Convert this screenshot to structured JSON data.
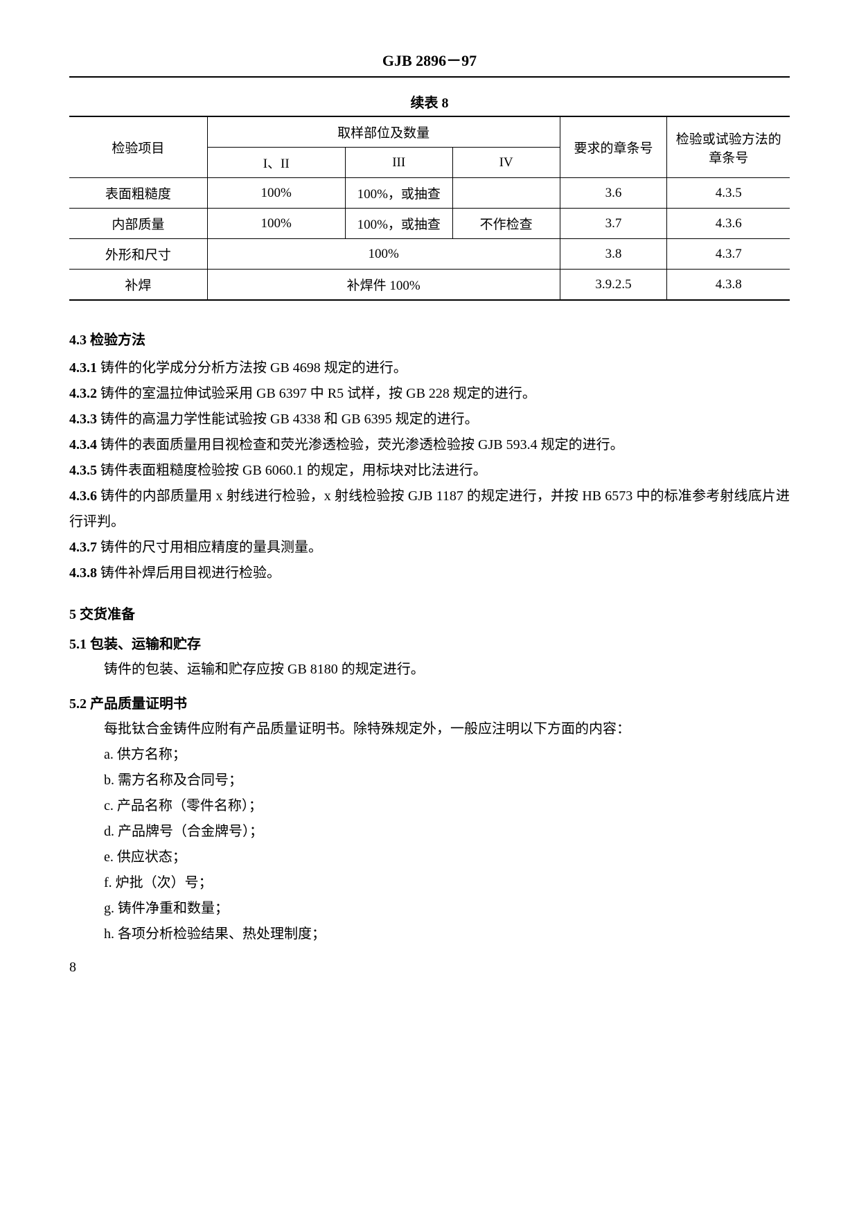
{
  "header": "GJB 2896－97",
  "table": {
    "title": "续表 8",
    "hdr_item": "检验项目",
    "hdr_sampling": "取样部位及数量",
    "hdr_c12": "I、II",
    "hdr_c3": "III",
    "hdr_c4": "IV",
    "hdr_req": "要求的章条号",
    "hdr_method": "检验或试验方法的章条号",
    "r1_item": "表面粗糙度",
    "r1_c12": "100%",
    "r1_c3": "100%，或抽查",
    "r1_c4": "",
    "r1_req": "3.6",
    "r1_method": "4.3.5",
    "r2_item": "内部质量",
    "r2_c12": "100%",
    "r2_c3": "100%，或抽查",
    "r2_c4": "不作检查",
    "r2_req": "3.7",
    "r2_method": "4.3.6",
    "r3_item": "外形和尺寸",
    "r3_merged": "100%",
    "r3_req": "3.8",
    "r3_method": "4.3.7",
    "r4_item": "补焊",
    "r4_merged": "补焊件 100%",
    "r4_req": "3.9.2.5",
    "r4_method": "4.3.8"
  },
  "sec43": {
    "heading": "4.3  检验方法",
    "p1_num": "4.3.1",
    "p1": "  铸件的化学成分分析方法按 GB 4698 规定的进行。",
    "p2_num": "4.3.2",
    "p2": "  铸件的室温拉伸试验采用 GB 6397 中 R5 试样，按 GB 228 规定的进行。",
    "p3_num": "4.3.3",
    "p3": "  铸件的高温力学性能试验按 GB 4338 和 GB 6395 规定的进行。",
    "p4_num": "4.3.4",
    "p4": "  铸件的表面质量用目视检查和荧光渗透检验，荧光渗透检验按 GJB 593.4 规定的进行。",
    "p5_num": "4.3.5",
    "p5": "  铸件表面粗糙度检验按 GB 6060.1 的规定，用标块对比法进行。",
    "p6_num": "4.3.6",
    "p6": "  铸件的内部质量用 x 射线进行检验，x 射线检验按 GJB 1187 的规定进行，并按 HB 6573 中的标准参考射线底片进行评判。",
    "p7_num": "4.3.7",
    "p7": "  铸件的尺寸用相应精度的量具测量。",
    "p8_num": "4.3.8",
    "p8": "  铸件补焊后用目视进行检验。"
  },
  "sec5": {
    "heading": "5  交货准备",
    "s51_heading": "5.1  包装、运输和贮存",
    "s51_text": "铸件的包装、运输和贮存应按 GB 8180 的规定进行。",
    "s52_heading": "5.2  产品质量证明书",
    "s52_text": "每批钛合金铸件应附有产品质量证明书。除特殊规定外，一般应注明以下方面的内容：",
    "li_a": "a. 供方名称；",
    "li_b": "b. 需方名称及合同号；",
    "li_c": "c. 产品名称（零件名称）；",
    "li_d": "d. 产品牌号（合金牌号）；",
    "li_e": "e. 供应状态；",
    "li_f": "f. 炉批（次）号；",
    "li_g": "g. 铸件净重和数量；",
    "li_h": "h. 各项分析检验结果、热处理制度；"
  },
  "page_num": "8"
}
